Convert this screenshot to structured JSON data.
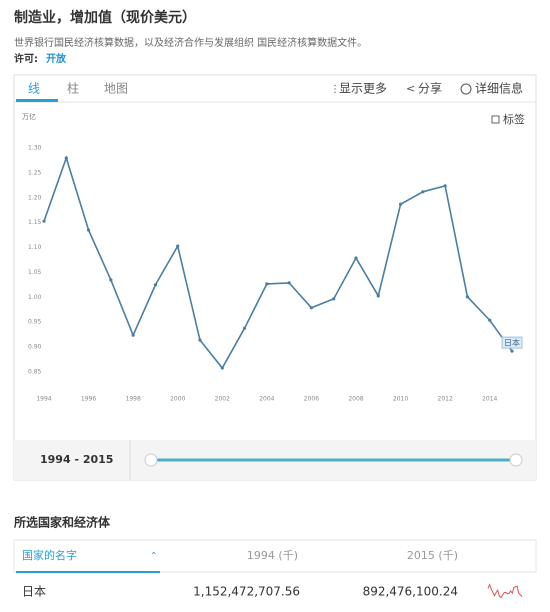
{
  "header": {
    "title": "制造业，增加值（现价美元）",
    "description": "世界银行国民经济核算数据，以及经济合作与发展组织 国民经济核算数据文件。",
    "license_label": "许可:",
    "license_value": "开放"
  },
  "tabs": [
    "线",
    "柱",
    "地图"
  ],
  "actions": [
    "显示更多",
    "分享",
    "详细信息"
  ],
  "chart_controls": {
    "labels": "标签"
  },
  "chart_data": {
    "type": "line",
    "y_label": "万亿",
    "x": [
      1994,
      1995,
      1996,
      1997,
      1998,
      1999,
      2000,
      2001,
      2002,
      2003,
      2004,
      2005,
      2006,
      2007,
      2008,
      2009,
      2010,
      2011,
      2012,
      2013,
      2014,
      2015
    ],
    "series": [
      {
        "name": "日本",
        "color": "#4a7fa3",
        "values": [
          1.153,
          1.28,
          1.135,
          1.035,
          0.924,
          1.025,
          1.103,
          0.914,
          0.858,
          0.938,
          1.027,
          1.029,
          0.979,
          0.997,
          1.079,
          1.003,
          1.187,
          1.212,
          1.224,
          1.001,
          0.954,
          0.892
        ]
      }
    ],
    "xlim": [
      1994,
      2015
    ],
    "xticks": [
      1994,
      1996,
      1998,
      2000,
      2002,
      2004,
      2006,
      2008,
      2010,
      2012,
      2014
    ],
    "ylim": [
      0.85,
      1.3
    ],
    "yticks": [
      0.85,
      {
        "value": 0.9,
        "label": "0.90"
      },
      0.95,
      {
        "value": 1,
        "label": "1.00"
      },
      1.05,
      {
        "value": 1.1,
        "label": "1.10"
      },
      1.15,
      {
        "value": 1.2,
        "label": "1.20"
      },
      1.25,
      {
        "value": 1.3,
        "label": "1.30"
      }
    ],
    "grid": false
  },
  "range": {
    "label": "1994 - 2015"
  },
  "table": {
    "section_title": "所选国家和经济体",
    "columns": [
      "国家的名字",
      "1994 (千)",
      "2015 (千)"
    ],
    "rows": [
      [
        "日本",
        "1,152,472,707.56",
        "892,476,100.24"
      ]
    ]
  }
}
